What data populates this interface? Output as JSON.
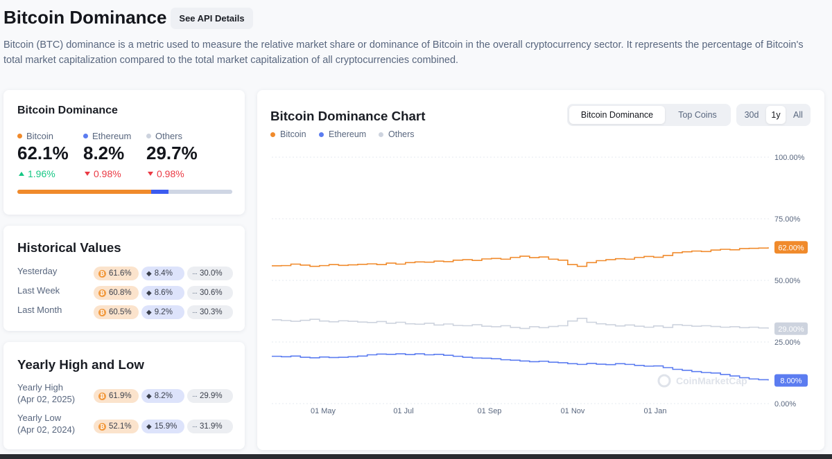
{
  "header": {
    "title": "Bitcoin Dominance",
    "api_button": "See API Details",
    "description": "Bitcoin (BTC) dominance is a metric used to measure the relative market share or dominance of Bitcoin in the overall cryptocurrency sector. It represents the percentage of Bitcoin's total market capitalization compared to the total market capitalization of all cryptocurrencies combined."
  },
  "colors": {
    "bitcoin": "#f08a2b",
    "ethereum": "#5b7cf0",
    "others": "#cdd3de"
  },
  "dominance": {
    "title": "Bitcoin Dominance",
    "items": [
      {
        "name": "Bitcoin",
        "value": "62.1%",
        "change": "1.96%",
        "direction": "up"
      },
      {
        "name": "Ethereum",
        "value": "8.2%",
        "change": "0.98%",
        "direction": "down"
      },
      {
        "name": "Others",
        "value": "29.7%",
        "change": "0.98%",
        "direction": "down"
      }
    ],
    "bar_fractions": [
      0.621,
      0.082,
      0.297
    ]
  },
  "historical": {
    "title": "Historical Values",
    "rows": [
      {
        "label": "Yesterday",
        "btc": "61.6%",
        "eth": "8.4%",
        "others": "30.0%"
      },
      {
        "label": "Last Week",
        "btc": "60.8%",
        "eth": "8.6%",
        "others": "30.6%"
      },
      {
        "label": "Last Month",
        "btc": "60.5%",
        "eth": "9.2%",
        "others": "30.3%"
      }
    ]
  },
  "yearly": {
    "title": "Yearly High and Low",
    "rows": [
      {
        "label": "Yearly High",
        "date": "(Apr 02, 2025)",
        "btc": "61.9%",
        "eth": "8.2%",
        "others": "29.9%"
      },
      {
        "label": "Yearly Low",
        "date": "(Apr 02, 2024)",
        "btc": "52.1%",
        "eth": "15.9%",
        "others": "31.9%"
      }
    ]
  },
  "chart_panel": {
    "title": "Bitcoin Dominance Chart",
    "view_tabs": [
      "Bitcoin Dominance",
      "Top Coins"
    ],
    "active_view": "Bitcoin Dominance",
    "range_tabs": [
      "30d",
      "1y",
      "All"
    ],
    "active_range": "1y",
    "watermark": "CoinMarketCap"
  },
  "chart_data": {
    "type": "line",
    "legend": [
      "Bitcoin",
      "Ethereum",
      "Others"
    ],
    "y_ticks": [
      "100.00%",
      "75.00%",
      "50.00%",
      "25.00%",
      "0.00%"
    ],
    "ylim": [
      0,
      100
    ],
    "x_ticks": [
      "01 May",
      "01 Jul",
      "01 Sep",
      "01 Nov",
      "01 Jan"
    ],
    "end_labels": [
      "62.00%",
      "29.00%",
      "8.00%"
    ],
    "grid": true,
    "legend_position": "top-left",
    "series": [
      {
        "name": "Bitcoin",
        "color": "#f08a2b",
        "values": [
          54.5,
          54.6,
          55.2,
          54.8,
          54.3,
          54.6,
          55.0,
          54.7,
          54.9,
          55.1,
          55.3,
          55.0,
          55.6,
          55.2,
          55.8,
          56.1,
          56.0,
          56.4,
          56.2,
          56.8,
          57.0,
          56.7,
          57.3,
          57.5,
          57.2,
          57.9,
          58.4,
          57.8,
          58.1,
          57.2,
          56.8,
          55.0,
          54.3,
          55.8,
          56.6,
          57.0,
          57.4,
          57.2,
          57.9,
          58.3,
          58.0,
          58.7,
          59.8,
          60.2,
          60.5,
          60.3,
          60.9,
          61.2,
          61.0,
          61.5,
          61.6,
          61.7,
          62.0
        ]
      },
      {
        "name": "Others",
        "color": "#cdd3de",
        "values": [
          32.6,
          32.3,
          32.0,
          32.4,
          32.8,
          32.1,
          31.8,
          32.2,
          32.0,
          31.7,
          31.5,
          31.9,
          31.2,
          31.6,
          31.0,
          30.8,
          31.2,
          30.5,
          30.9,
          30.3,
          30.2,
          30.6,
          30.0,
          29.8,
          30.2,
          29.5,
          29.1,
          29.8,
          29.4,
          29.9,
          30.2,
          32.1,
          33.2,
          31.6,
          31.0,
          30.6,
          30.1,
          30.5,
          30.0,
          29.6,
          30.1,
          29.5,
          30.6,
          30.3,
          30.0,
          30.2,
          29.9,
          29.6,
          29.8,
          29.4,
          29.6,
          29.3,
          29.0
        ]
      },
      {
        "name": "Ethereum",
        "color": "#5b7cf0",
        "values": [
          17.8,
          17.6,
          17.9,
          17.4,
          17.2,
          17.5,
          17.3,
          17.4,
          17.6,
          17.9,
          18.4,
          18.7,
          18.6,
          18.8,
          18.5,
          18.8,
          18.4,
          18.6,
          18.2,
          17.8,
          17.4,
          17.1,
          17.0,
          16.8,
          16.4,
          16.2,
          15.9,
          15.6,
          15.8,
          15.4,
          15.2,
          14.8,
          14.5,
          14.9,
          14.6,
          14.4,
          14.8,
          14.5,
          14.1,
          13.8,
          13.9,
          13.2,
          12.5,
          12.1,
          11.6,
          11.2,
          11.0,
          10.4,
          9.8,
          9.1,
          8.6,
          8.3,
          8.0
        ]
      }
    ]
  }
}
